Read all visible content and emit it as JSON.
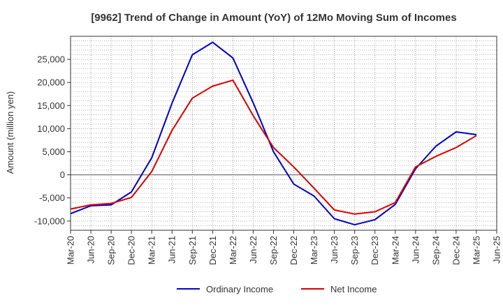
{
  "chart_data": {
    "type": "line",
    "title": "[9962]  Trend of Change in Amount (YoY) of 12Mo Moving Sum of Incomes",
    "xlabel": "",
    "ylabel": "Amount (million yen)",
    "categories": [
      "Mar-20",
      "Jun-20",
      "Sep-20",
      "Dec-20",
      "Mar-21",
      "Jun-21",
      "Sep-21",
      "Dec-21",
      "Mar-22",
      "Jun-22",
      "Sep-22",
      "Dec-22",
      "Mar-23",
      "Jun-23",
      "Sep-23",
      "Dec-23",
      "Mar-24",
      "Jun-24",
      "Sep-24",
      "Dec-24",
      "Mar-25",
      "Jun-25"
    ],
    "ylim": [
      -12000,
      30000
    ],
    "yticks": [
      -10000,
      -5000,
      0,
      5000,
      10000,
      15000,
      20000,
      25000
    ],
    "ytick_labels": [
      "-10,000",
      "-5,000",
      "0",
      "5,000",
      "10,000",
      "15,000",
      "20,000",
      "25,000"
    ],
    "grid": true,
    "legend_position": "bottom",
    "series": [
      {
        "name": "Ordinary Income",
        "color": "#0000cc",
        "values": [
          -8400,
          -6700,
          -6500,
          -3700,
          3700,
          15500,
          26000,
          28700,
          25300,
          15600,
          5000,
          -2000,
          -4600,
          -9500,
          -10800,
          -9700,
          -6400,
          1300,
          6200,
          9300,
          8700,
          null
        ]
      },
      {
        "name": "Net Income",
        "color": "#dd0000",
        "values": [
          -7400,
          -6500,
          -6200,
          -4900,
          700,
          9600,
          16600,
          19200,
          20500,
          12800,
          5900,
          1700,
          -2900,
          -7600,
          -8500,
          -8000,
          -6000,
          1700,
          4000,
          5900,
          8500,
          null
        ]
      }
    ]
  }
}
